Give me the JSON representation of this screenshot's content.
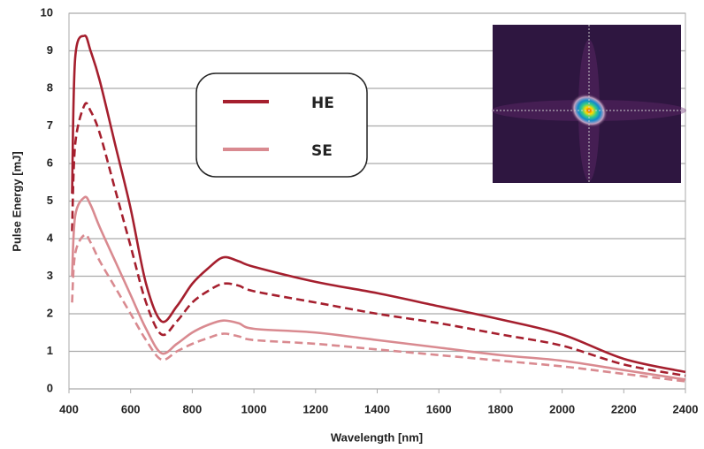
{
  "chart_data": {
    "type": "line",
    "x_label": "Wavelength [nm]",
    "y_label": "Pulse Energy [mJ]",
    "xlim": [
      400,
      2400
    ],
    "xticks": [
      400,
      600,
      800,
      1000,
      1200,
      1400,
      1600,
      1800,
      2000,
      2200,
      2400
    ],
    "ylim": [
      0,
      10
    ],
    "yticks": [
      0,
      1,
      2,
      3,
      4,
      5,
      6,
      7,
      8,
      9,
      10
    ],
    "grid": true,
    "legend": "top",
    "x": [
      410,
      420,
      450,
      470,
      500,
      550,
      600,
      650,
      700,
      750,
      800,
      850,
      900,
      950,
      1000,
      1200,
      1400,
      1600,
      1800,
      2000,
      2200,
      2400
    ],
    "series": [
      {
        "name": "HE",
        "color": "#a51f2e",
        "dash": false,
        "values": [
          5.2,
          8.8,
          9.4,
          9.0,
          8.2,
          6.5,
          4.8,
          2.8,
          1.8,
          2.2,
          2.8,
          3.2,
          3.5,
          3.4,
          3.25,
          2.85,
          2.55,
          2.2,
          1.85,
          1.45,
          0.8,
          0.45
        ]
      },
      {
        "color": "#a51f2e",
        "dash": true,
        "values": [
          4.2,
          6.5,
          7.55,
          7.4,
          6.8,
          5.3,
          3.8,
          2.3,
          1.45,
          1.8,
          2.3,
          2.6,
          2.8,
          2.75,
          2.6,
          2.3,
          2.0,
          1.75,
          1.45,
          1.15,
          0.65,
          0.35
        ]
      },
      {
        "name": "SE",
        "color": "#d98a90",
        "dash": false,
        "values": [
          3.0,
          4.6,
          5.1,
          4.9,
          4.3,
          3.4,
          2.5,
          1.6,
          0.95,
          1.2,
          1.5,
          1.7,
          1.82,
          1.75,
          1.6,
          1.5,
          1.3,
          1.1,
          0.9,
          0.75,
          0.5,
          0.25
        ]
      },
      {
        "color": "#d98a90",
        "dash": true,
        "values": [
          2.3,
          3.6,
          4.1,
          3.9,
          3.4,
          2.7,
          2.0,
          1.3,
          0.78,
          1.0,
          1.2,
          1.35,
          1.47,
          1.4,
          1.3,
          1.2,
          1.05,
          0.9,
          0.75,
          0.6,
          0.4,
          0.2
        ]
      }
    ]
  }
}
